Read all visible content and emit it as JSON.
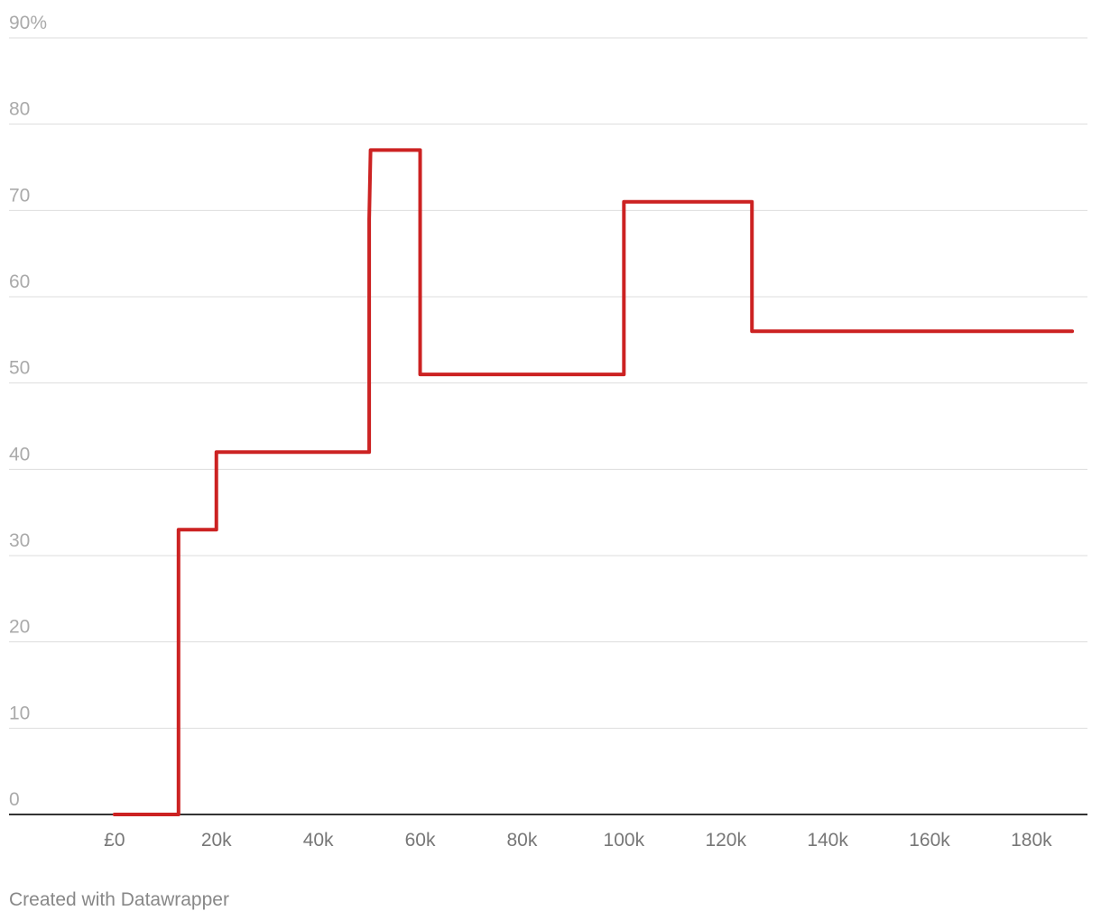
{
  "chart_data": {
    "type": "line",
    "x": [
      0,
      12570,
      12570,
      20000,
      20000,
      50000,
      50000,
      50270,
      60000,
      60000,
      100000,
      100000,
      125140,
      125140,
      188000
    ],
    "series": [
      {
        "color": "#cc2222",
        "values": [
          0,
          0,
          33,
          33,
          42,
          42,
          69,
          77,
          77,
          51,
          51,
          71,
          71,
          56,
          56
        ]
      }
    ],
    "xlim": [
      -20700,
      191000
    ],
    "xticks": [
      {
        "value": 0,
        "label": "£0"
      },
      {
        "value": 20000,
        "label": "20k"
      },
      {
        "value": 40000,
        "label": "40k"
      },
      {
        "value": 60000,
        "label": "60k"
      },
      {
        "value": 80000,
        "label": "80k"
      },
      {
        "value": 100000,
        "label": "100k"
      },
      {
        "value": 120000,
        "label": "120k"
      },
      {
        "value": 140000,
        "label": "140k"
      },
      {
        "value": 160000,
        "label": "160k"
      },
      {
        "value": 180000,
        "label": "180k"
      }
    ],
    "ylim": [
      0,
      90
    ],
    "yticks": [
      0,
      10,
      20,
      30,
      40,
      50,
      60,
      70,
      80,
      {
        "value": 90,
        "label": "90%"
      }
    ],
    "grid": true,
    "footer": "Created with Datawrapper"
  }
}
